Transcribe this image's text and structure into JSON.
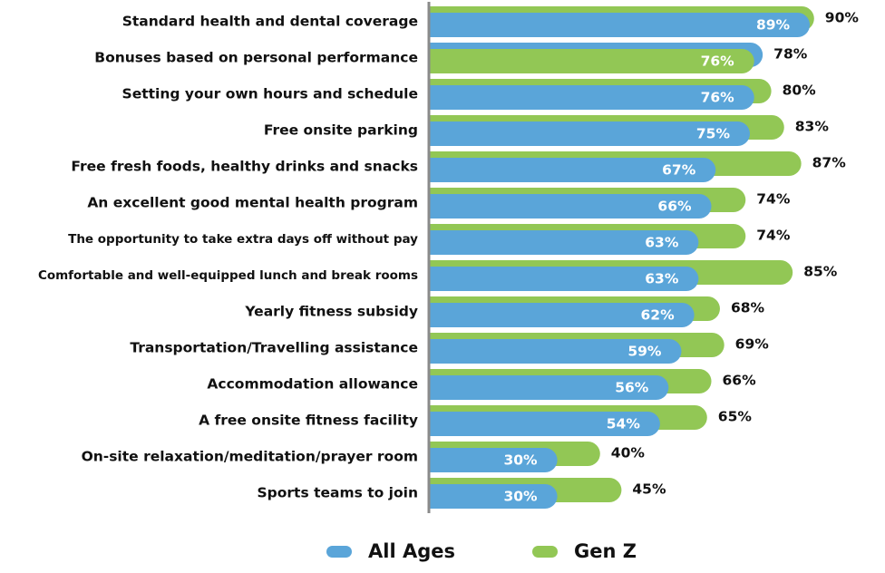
{
  "chart_data": {
    "type": "bar",
    "orientation": "horizontal",
    "title": "",
    "xlabel": "",
    "ylabel": "",
    "xlim": [
      0,
      100
    ],
    "grid": false,
    "legend_position": "bottom",
    "value_suffix": "%",
    "categories": [
      "Standard health and dental coverage",
      "Bonuses based on personal performance",
      "Setting your own hours and schedule",
      "Free onsite parking",
      "Free fresh foods, healthy drinks and snacks",
      "An excellent good mental health program",
      "The opportunity to take extra days off without pay",
      "Comfortable and well-equipped lunch and break rooms",
      "Yearly fitness subsidy",
      "Transportation/Travelling assistance",
      "Accommodation allowance",
      "A free onsite fitness facility",
      "On-site relaxation/meditation/prayer room",
      "Sports teams to join"
    ],
    "series": [
      {
        "name": "All Ages",
        "color": "#5aa5d9",
        "values": [
          89,
          78,
          76,
          75,
          67,
          66,
          63,
          63,
          62,
          59,
          56,
          54,
          30,
          30
        ]
      },
      {
        "name": "Gen Z",
        "color": "#92c755",
        "values": [
          90,
          76,
          80,
          83,
          87,
          74,
          74,
          85,
          68,
          69,
          66,
          65,
          40,
          45
        ]
      }
    ]
  },
  "legend": {
    "items": [
      {
        "label": "All Ages",
        "color": "#5aa5d9"
      },
      {
        "label": "Gen Z",
        "color": "#92c755"
      }
    ]
  }
}
